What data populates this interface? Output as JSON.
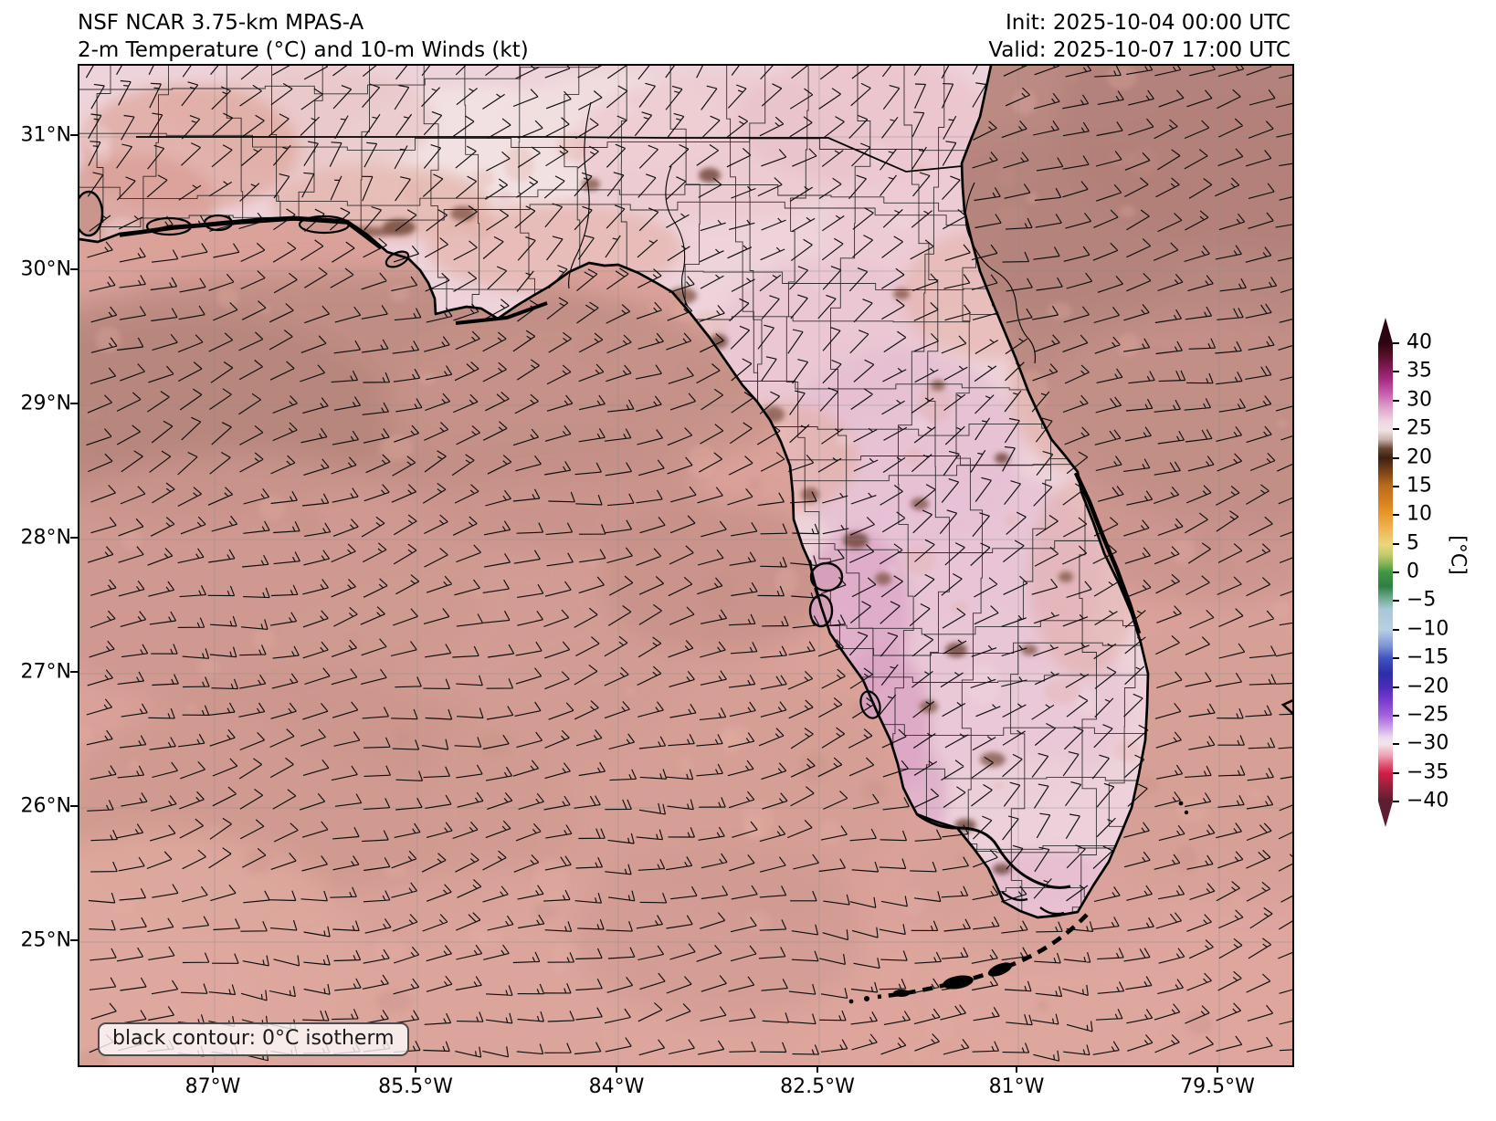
{
  "header": {
    "title_line1": "NSF NCAR 3.75-km MPAS-A",
    "title_line2": "2-m Temperature (°C) and 10-m Winds (kt)",
    "init_label": "Init: 2025-10-04 00:00 UTC",
    "valid_label": "Valid: 2025-10-07 17:00 UTC"
  },
  "axes": {
    "x_tick_labels": [
      "87°W",
      "85.5°W",
      "84°W",
      "82.5°W",
      "81°W",
      "79.5°W"
    ],
    "y_tick_labels": [
      "31°N",
      "30°N",
      "29°N",
      "28°N",
      "27°N",
      "26°N",
      "25°N"
    ]
  },
  "colorbar": {
    "unit": "[°C]",
    "tick_labels": [
      "40",
      "35",
      "30",
      "25",
      "20",
      "15",
      "10",
      "5",
      "0",
      "−5",
      "−10",
      "−15",
      "−20",
      "−25",
      "−30",
      "−35",
      "−40"
    ]
  },
  "legend": {
    "text": "black contour: 0°C isotherm"
  },
  "chart_data": {
    "type": "heatmap",
    "title": "NSF NCAR 3.75-km MPAS-A — 2-m Temperature (°C) and 10-m Winds (kt)",
    "init_time": "2025-10-04 00:00 UTC",
    "valid_time": "2025-10-07 17:00 UTC",
    "region": {
      "description": "Florida peninsula, Gulf of Mexico and adjacent Atlantic",
      "lon_ticks_deg_w": [
        87,
        85.5,
        84,
        82.5,
        81,
        79.5
      ],
      "lat_ticks_deg_n": [
        31,
        30,
        29,
        28,
        27,
        26,
        25
      ]
    },
    "temperature_scale_c": {
      "min": -40,
      "max": 40,
      "tick_step": 5
    },
    "field_summary": {
      "ocean_2m_temp_c": "approx 27-29 (salmon to dark mauve shades; warmest/darkest over NE Atlantic and along the panhandle shelf)",
      "land_2m_temp_c": "approx 25-27 (pale pink/lavender interior) with warmer brown patches",
      "winds_10m": "easterly to northeasterly flow across the whole domain, about 10-20 kt over water and 5-10 kt over land",
      "isotherm_contour_c": 0
    }
  },
  "colors": {
    "ocean_base": "#dba29a",
    "atlantic_dark": "#bb8a83",
    "land_base": "#eed3da",
    "land_lavender": "#e5bed2",
    "warm_patch_brown": "#84584a",
    "coastline": "#000000",
    "barb": "#0d0d0d"
  }
}
